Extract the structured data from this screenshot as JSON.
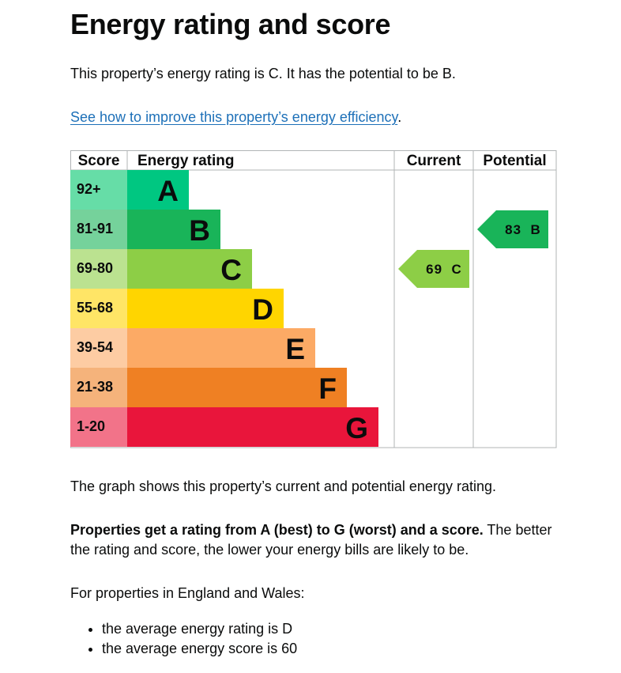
{
  "heading": "Energy rating and score",
  "intro": "This property’s energy rating is C. It has the potential to be B.",
  "improve_link": "See how to improve this property’s energy efficiency",
  "improve_link_suffix": ".",
  "chart_data": {
    "type": "table",
    "columns": [
      "Score",
      "Energy rating",
      "Current",
      "Potential"
    ],
    "bands": [
      {
        "score": "92+",
        "letter": "A",
        "color": "#00c781",
        "score_bg": "#66dda7"
      },
      {
        "score": "81-91",
        "letter": "B",
        "color": "#19b459",
        "score_bg": "#75d29b"
      },
      {
        "score": "69-80",
        "letter": "C",
        "color": "#8dce46",
        "score_bg": "#bbe290"
      },
      {
        "score": "55-68",
        "letter": "D",
        "color": "#ffd500",
        "score_bg": "#ffe566"
      },
      {
        "score": "39-54",
        "letter": "E",
        "color": "#fcaa65",
        "score_bg": "#fdcca3"
      },
      {
        "score": "21-38",
        "letter": "F",
        "color": "#ef8023",
        "score_bg": "#f5b37b"
      },
      {
        "score": "1-20",
        "letter": "G",
        "color": "#e9153b",
        "score_bg": "#f27389"
      }
    ],
    "current": {
      "score": 69,
      "band": "C",
      "label": "69 C"
    },
    "potential": {
      "score": 83,
      "band": "B",
      "label": "83 B"
    }
  },
  "graph_note": "The graph shows this property’s current and potential energy rating.",
  "rating_bold": "Properties get a rating from A (best) to G (worst) and a score.",
  "rating_rest": " The better the rating and score, the lower your energy bills are likely to be.",
  "england_wales": "For properties in England and Wales:",
  "averages": [
    "the average energy rating is D",
    "the average energy score is 60"
  ]
}
